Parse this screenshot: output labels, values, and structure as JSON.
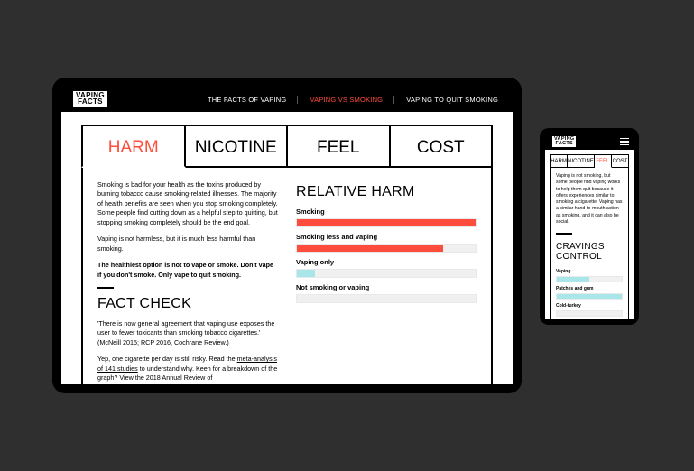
{
  "colors": {
    "accent_red": "#ff4d3d",
    "cyan": "#a8e6ea",
    "bg_dark": "#2f2f2f",
    "black": "#000000",
    "white": "#ffffff",
    "track": "#f0f0f0"
  },
  "logo_line1": "VAPING",
  "logo_line2": "FACTS",
  "tablet": {
    "nav": [
      {
        "label": "THE FACTS OF VAPING",
        "active": false
      },
      {
        "label": "VAPING VS SMOKING",
        "active": true
      },
      {
        "label": "VAPING TO QUIT SMOKING",
        "active": false
      }
    ],
    "tabs": [
      {
        "label": "HARM",
        "active": true
      },
      {
        "label": "NICOTINE",
        "active": false
      },
      {
        "label": "FEEL",
        "active": false
      },
      {
        "label": "COST",
        "active": false
      }
    ],
    "para1": "Smoking is bad for your health as the toxins produced by burning tobacco cause smoking-related illnesses. The majority of health benefits are seen when you stop smoking completely. Some people find cutting down as a helpful step to quitting, but stopping smoking completely should be the end goal.",
    "para2": "Vaping is not harmless, but it is much less harmful than smoking.",
    "para3_strong": "The healthiest option is not to vape or smoke. Don't vape if you don't smoke. Only vape to quit smoking.",
    "fact_check_heading": "FACT CHECK",
    "fact_p1_a": "'There is now general agreement that vaping use exposes the user to fewer toxicants than smoking tobacco cigarettes.' (",
    "fact_p1_link1": "McNeill 2015",
    "fact_p1_mid": "; ",
    "fact_p1_link2": "RCP 2016",
    "fact_p1_b": ", Cochrane Review.)",
    "fact_p2_a": "Yep, one cigarette per day is still risky. Read the ",
    "fact_p2_link": "meta-analysis of 141 studies",
    "fact_p2_b": " to understand why. Keen for a breakdown of the graph? View the 2018 Annual Review of",
    "relative_heading": "RELATIVE HARM",
    "bars": [
      {
        "label": "Smoking",
        "value": 100,
        "color": "#ff4d3d"
      },
      {
        "label": "Smoking less and vaping",
        "value": 82,
        "color": "#ff4d3d"
      },
      {
        "label": "Vaping only",
        "value": 10,
        "color": "#a8e6ea"
      },
      {
        "label": "Not smoking or vaping",
        "value": 0,
        "color": "#a8e6ea"
      }
    ]
  },
  "phone": {
    "tabs": [
      {
        "label": "HARM",
        "active": false
      },
      {
        "label": "NICOTINE",
        "active": false
      },
      {
        "label": "FEEL",
        "active": true
      },
      {
        "label": "COST",
        "active": false
      }
    ],
    "para": "Vaping is not smoking, but some people find vaping works to help them quit because it offers experiences similar to smoking a cigarette. Vaping has a similar hand-to-mouth action as smoking, and it can also be social.",
    "cravings_heading": "CRAVINGS CONTROL",
    "bars": [
      {
        "label": "Vaping",
        "value": 50,
        "color": "#a8e6ea"
      },
      {
        "label": "Patches and gum",
        "value": 100,
        "color": "#a8e6ea"
      },
      {
        "label": "Cold-turkey",
        "value": 0,
        "color": "#a8e6ea"
      }
    ]
  }
}
